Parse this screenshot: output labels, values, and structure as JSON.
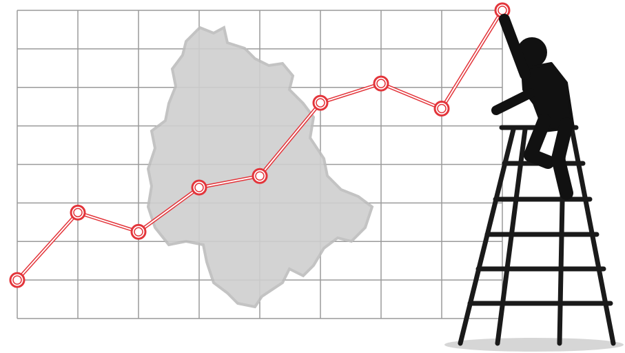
{
  "chart_data": {
    "type": "line",
    "x": [
      0,
      1,
      2,
      3,
      4,
      5,
      6,
      7,
      8
    ],
    "values": [
      1,
      2.75,
      2.25,
      3.4,
      3.7,
      5.6,
      6.1,
      5.45,
      8
    ],
    "xlim": [
      0,
      8
    ],
    "ylim": [
      0,
      8
    ],
    "color": "#e3343a",
    "grid": true
  }
}
